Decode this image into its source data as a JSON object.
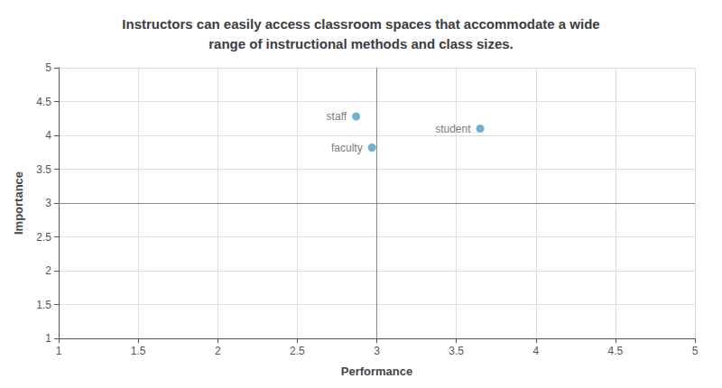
{
  "chart_data": {
    "type": "scatter",
    "title": "Instructors can easily access classroom spaces that accommodate a wide\nrange of instructional methods and class sizes.",
    "xlabel": "Performance",
    "ylabel": "Importance",
    "x": [
      2.87,
      2.97,
      3.65
    ],
    "values": [
      4.28,
      3.82,
      4.1
    ],
    "labels": [
      "staff",
      "faculty",
      "student"
    ],
    "color": "#4a9fc4",
    "xlim": [
      1,
      5
    ],
    "ylim": [
      1,
      5
    ],
    "xticks": [
      1,
      1.5,
      2,
      2.5,
      3,
      3.5,
      4,
      4.5,
      5
    ],
    "yticks": [
      1,
      1.5,
      2,
      2.5,
      3,
      3.5,
      4,
      4.5,
      5
    ],
    "reference_lines": {
      "x": 3,
      "y": 3,
      "color": "#888888"
    },
    "grid": true
  }
}
